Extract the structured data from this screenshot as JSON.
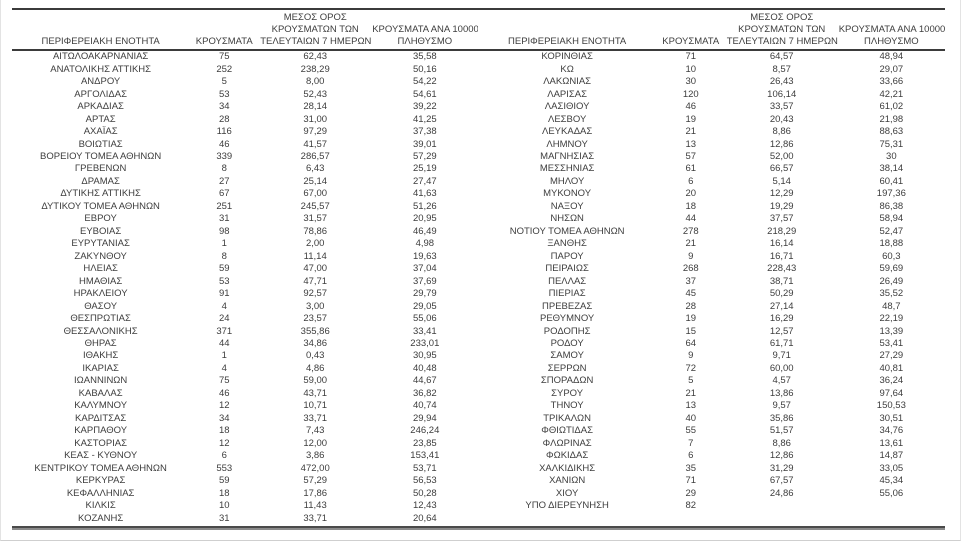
{
  "colors": {
    "background": "#ffffff",
    "text": "#3d3d3d",
    "table_border": "#3b3b3b",
    "frame_border": "#cfcfcf"
  },
  "headers": {
    "region": "ΠΕΡΙΦΕΡΕΙΑΚΗ ΕΝΟΤΗΤΑ",
    "cases": "ΚΡΟΥΣΜΑΤΑ",
    "avg7": [
      "ΜΕΣΟΣ ΟΡΟΣ",
      "ΚΡΟΥΣΜΑΤΩΝ ΤΩΝ",
      "ΤΕΛΕΥΤΑΙΩΝ 7 ΗΜΕΡΩΝ"
    ],
    "per100k": [
      "ΚΡΟΥΣΜΑΤΑ ΑΝΑ 100000",
      "ΠΛΗΘΥΣΜΟ"
    ]
  },
  "tables": [
    {
      "rows": [
        [
          "ΑΙΤΩΛΟΑΚΑΡΝΑΝΙΑΣ",
          "75",
          "62,43",
          "35,58"
        ],
        [
          "ΑΝΑΤΟΛΙΚΗΣ ΑΤΤΙΚΗΣ",
          "252",
          "238,29",
          "50,16"
        ],
        [
          "ΑΝΔΡΟΥ",
          "5",
          "8,00",
          "54,22"
        ],
        [
          "ΑΡΓΟΛΙΔΑΣ",
          "53",
          "52,43",
          "54,61"
        ],
        [
          "ΑΡΚΑΔΙΑΣ",
          "34",
          "28,14",
          "39,22"
        ],
        [
          "ΑΡΤΑΣ",
          "28",
          "31,00",
          "41,25"
        ],
        [
          "ΑΧΑΪΑΣ",
          "116",
          "97,29",
          "37,38"
        ],
        [
          "ΒΟΙΩΤΙΑΣ",
          "46",
          "41,57",
          "39,01"
        ],
        [
          "ΒΟΡΕΙΟΥ ΤΟΜΕΑ ΑΘΗΝΩΝ",
          "339",
          "286,57",
          "57,29"
        ],
        [
          "ΓΡΕΒΕΝΩΝ",
          "8",
          "6,43",
          "25,19"
        ],
        [
          "ΔΡΑΜΑΣ",
          "27",
          "25,14",
          "27,47"
        ],
        [
          "ΔΥΤΙΚΗΣ ΑΤΤΙΚΗΣ",
          "67",
          "67,00",
          "41,63"
        ],
        [
          "ΔΥΤΙΚΟΥ ΤΟΜΕΑ ΑΘΗΝΩΝ",
          "251",
          "245,57",
          "51,26"
        ],
        [
          "ΕΒΡΟΥ",
          "31",
          "31,57",
          "20,95"
        ],
        [
          "ΕΥΒΟΙΑΣ",
          "98",
          "78,86",
          "46,49"
        ],
        [
          "ΕΥΡΥΤΑΝΙΑΣ",
          "1",
          "2,00",
          "4,98"
        ],
        [
          "ΖΑΚΥΝΘΟΥ",
          "8",
          "11,14",
          "19,63"
        ],
        [
          "ΗΛΕΙΑΣ",
          "59",
          "47,00",
          "37,04"
        ],
        [
          "ΗΜΑΘΙΑΣ",
          "53",
          "47,71",
          "37,69"
        ],
        [
          "ΗΡΑΚΛΕΙΟΥ",
          "91",
          "92,57",
          "29,79"
        ],
        [
          "ΘΑΣΟΥ",
          "4",
          "3,00",
          "29,05"
        ],
        [
          "ΘΕΣΠΡΩΤΙΑΣ",
          "24",
          "23,57",
          "55,06"
        ],
        [
          "ΘΕΣΣΑΛΟΝΙΚΗΣ",
          "371",
          "355,86",
          "33,41"
        ],
        [
          "ΘΗΡΑΣ",
          "44",
          "34,86",
          "233,01"
        ],
        [
          "ΙΘΑΚΗΣ",
          "1",
          "0,43",
          "30,95"
        ],
        [
          "ΙΚΑΡΙΑΣ",
          "4",
          "4,86",
          "40,48"
        ],
        [
          "ΙΩΑΝΝΙΝΩΝ",
          "75",
          "59,00",
          "44,67"
        ],
        [
          "ΚΑΒΑΛΑΣ",
          "46",
          "43,71",
          "36,82"
        ],
        [
          "ΚΑΛΥΜΝΟΥ",
          "12",
          "10,71",
          "40,74"
        ],
        [
          "ΚΑΡΔΙΤΣΑΣ",
          "34",
          "33,71",
          "29,94"
        ],
        [
          "ΚΑΡΠΑΘΟΥ",
          "18",
          "7,43",
          "246,24"
        ],
        [
          "ΚΑΣΤΟΡΙΑΣ",
          "12",
          "12,00",
          "23,85"
        ],
        [
          "ΚΕΑΣ - ΚΥΘΝΟΥ",
          "6",
          "3,86",
          "153,41"
        ],
        [
          "ΚΕΝΤΡΙΚΟΥ ΤΟΜΕΑ ΑΘΗΝΩΝ",
          "553",
          "472,00",
          "53,71"
        ],
        [
          "ΚΕΡΚΥΡΑΣ",
          "59",
          "57,29",
          "56,53"
        ],
        [
          "ΚΕΦΑΛΛΗΝΙΑΣ",
          "18",
          "17,86",
          "50,28"
        ],
        [
          "ΚΙΛΚΙΣ",
          "10",
          "11,43",
          "12,43"
        ],
        [
          "ΚΟΖΑΝΗΣ",
          "31",
          "33,71",
          "20,64"
        ]
      ]
    },
    {
      "rows": [
        [
          "ΚΟΡΙΝΘΙΑΣ",
          "71",
          "64,57",
          "48,94"
        ],
        [
          "ΚΩ",
          "10",
          "8,57",
          "29,07"
        ],
        [
          "ΛΑΚΩΝΙΑΣ",
          "30",
          "26,43",
          "33,66"
        ],
        [
          "ΛΑΡΙΣΑΣ",
          "120",
          "106,14",
          "42,21"
        ],
        [
          "ΛΑΣΙΘΙΟΥ",
          "46",
          "33,57",
          "61,02"
        ],
        [
          "ΛΕΣΒΟΥ",
          "19",
          "20,43",
          "21,98"
        ],
        [
          "ΛΕΥΚΑΔΑΣ",
          "21",
          "8,86",
          "88,63"
        ],
        [
          "ΛΗΜΝΟΥ",
          "13",
          "12,86",
          "75,31"
        ],
        [
          "ΜΑΓΝΗΣΙΑΣ",
          "57",
          "52,00",
          "30"
        ],
        [
          "ΜΕΣΣΗΝΙΑΣ",
          "61",
          "66,57",
          "38,14"
        ],
        [
          "ΜΗΛΟΥ",
          "6",
          "5,14",
          "60,41"
        ],
        [
          "ΜΥΚΟΝΟΥ",
          "20",
          "12,29",
          "197,36"
        ],
        [
          "ΝΑΞΟΥ",
          "18",
          "19,29",
          "86,38"
        ],
        [
          "ΝΗΣΩΝ",
          "44",
          "37,57",
          "58,94"
        ],
        [
          "ΝΟΤΙΟΥ ΤΟΜΕΑ ΑΘΗΝΩΝ",
          "278",
          "218,29",
          "52,47"
        ],
        [
          "ΞΑΝΘΗΣ",
          "21",
          "16,14",
          "18,88"
        ],
        [
          "ΠΑΡΟΥ",
          "9",
          "16,71",
          "60,3"
        ],
        [
          "ΠΕΙΡΑΙΩΣ",
          "268",
          "228,43",
          "59,69"
        ],
        [
          "ΠΕΛΛΑΣ",
          "37",
          "38,71",
          "26,49"
        ],
        [
          "ΠΙΕΡΙΑΣ",
          "45",
          "50,29",
          "35,52"
        ],
        [
          "ΠΡΕΒΕΖΑΣ",
          "28",
          "27,14",
          "48,7"
        ],
        [
          "ΡΕΘΥΜΝΟΥ",
          "19",
          "16,29",
          "22,19"
        ],
        [
          "ΡΟΔΟΠΗΣ",
          "15",
          "12,57",
          "13,39"
        ],
        [
          "ΡΟΔΟΥ",
          "64",
          "61,71",
          "53,41"
        ],
        [
          "ΣΑΜΟΥ",
          "9",
          "9,71",
          "27,29"
        ],
        [
          "ΣΕΡΡΩΝ",
          "72",
          "60,00",
          "40,81"
        ],
        [
          "ΣΠΟΡΑΔΩΝ",
          "5",
          "4,57",
          "36,24"
        ],
        [
          "ΣΥΡΟΥ",
          "21",
          "13,86",
          "97,64"
        ],
        [
          "ΤΗΝΟΥ",
          "13",
          "9,57",
          "150,53"
        ],
        [
          "ΤΡΙΚΑΛΩΝ",
          "40",
          "35,86",
          "30,51"
        ],
        [
          "ΦΘΙΩΤΙΔΑΣ",
          "55",
          "51,57",
          "34,76"
        ],
        [
          "ΦΛΩΡΙΝΑΣ",
          "7",
          "8,86",
          "13,61"
        ],
        [
          "ΦΩΚΙΔΑΣ",
          "6",
          "12,86",
          "14,87"
        ],
        [
          "ΧΑΛΚΙΔΙΚΗΣ",
          "35",
          "31,29",
          "33,05"
        ],
        [
          "ΧΑΝΙΩΝ",
          "71",
          "67,57",
          "45,34"
        ],
        [
          "ΧΙΟΥ",
          "29",
          "24,86",
          "55,06"
        ],
        [
          "ΥΠΟ ΔΙΕΡΕΥΝΗΣΗ",
          "82",
          "",
          ""
        ]
      ]
    }
  ]
}
